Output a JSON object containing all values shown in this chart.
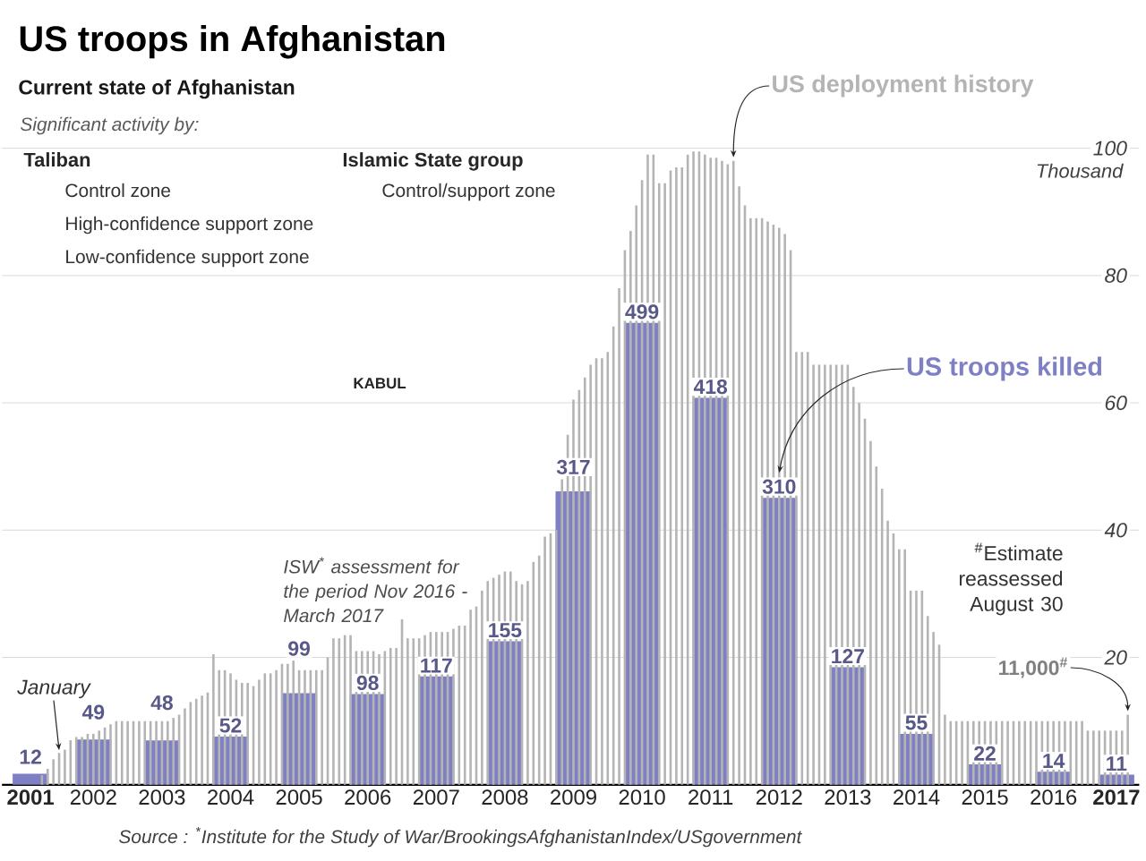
{
  "chart_data": {
    "type": "bar",
    "title": "US troops in Afghanistan",
    "subtitle": "Current state of Afghanistan",
    "ylabel": "Thousand",
    "xlim": [
      "2001-03",
      "2017-10"
    ],
    "ylim": [
      0,
      100
    ],
    "xticks": [
      {
        "value": "2001-08",
        "label": "2001"
      },
      {
        "value": "2002-07",
        "label": "2002"
      },
      {
        "value": "2003-07",
        "label": "2003"
      },
      {
        "value": "2004-07",
        "label": "2004"
      },
      {
        "value": "2005-07",
        "label": "2005"
      },
      {
        "value": "2006-07",
        "label": "2006"
      },
      {
        "value": "2007-07",
        "label": "2007"
      },
      {
        "value": "2008-07",
        "label": "2008"
      },
      {
        "value": "2009-07",
        "label": "2009"
      },
      {
        "value": "2010-07",
        "label": "2010"
      },
      {
        "value": "2011-07",
        "label": "2011"
      },
      {
        "value": "2012-07",
        "label": "2012"
      },
      {
        "value": "2013-07",
        "label": "2013"
      },
      {
        "value": "2014-07",
        "label": "2014"
      },
      {
        "value": "2015-07",
        "label": "2015"
      },
      {
        "value": "2016-07",
        "label": "2016"
      },
      {
        "value": "2017-06",
        "label": "2017"
      }
    ],
    "yticks": [
      20,
      40,
      60,
      80,
      100
    ],
    "grid": "y",
    "series": [
      {
        "name": "US deployment history",
        "color": "#b4b4b4",
        "x": [
          "2001-10",
          "2001-11",
          "2001-12",
          "2002-01",
          "2002-02",
          "2002-03",
          "2002-04",
          "2002-05",
          "2002-06",
          "2002-07",
          "2002-08",
          "2002-09",
          "2002-10",
          "2002-11",
          "2002-12",
          "2003-01",
          "2003-02",
          "2003-03",
          "2003-04",
          "2003-05",
          "2003-06",
          "2003-07",
          "2003-08",
          "2003-09",
          "2003-10",
          "2003-11",
          "2003-12",
          "2004-01",
          "2004-02",
          "2004-03",
          "2004-04",
          "2004-05",
          "2004-06",
          "2004-07",
          "2004-08",
          "2004-09",
          "2004-10",
          "2004-11",
          "2004-12",
          "2005-01",
          "2005-02",
          "2005-03",
          "2005-04",
          "2005-05",
          "2005-06",
          "2005-07",
          "2005-08",
          "2005-09",
          "2005-10",
          "2005-11",
          "2005-12",
          "2006-01",
          "2006-02",
          "2006-03",
          "2006-04",
          "2006-05",
          "2006-06",
          "2006-07",
          "2006-08",
          "2006-09",
          "2006-10",
          "2006-11",
          "2006-12",
          "2007-01",
          "2007-02",
          "2007-03",
          "2007-04",
          "2007-05",
          "2007-06",
          "2007-07",
          "2007-08",
          "2007-09",
          "2007-10",
          "2007-11",
          "2007-12",
          "2008-01",
          "2008-02",
          "2008-03",
          "2008-04",
          "2008-05",
          "2008-06",
          "2008-07",
          "2008-08",
          "2008-09",
          "2008-10",
          "2008-11",
          "2008-12",
          "2009-01",
          "2009-02",
          "2009-03",
          "2009-04",
          "2009-05",
          "2009-06",
          "2009-07",
          "2009-08",
          "2009-09",
          "2009-10",
          "2009-11",
          "2009-12",
          "2010-01",
          "2010-02",
          "2010-03",
          "2010-04",
          "2010-05",
          "2010-06",
          "2010-07",
          "2010-08",
          "2010-09",
          "2010-10",
          "2010-11",
          "2010-12",
          "2011-01",
          "2011-02",
          "2011-03",
          "2011-04",
          "2011-05",
          "2011-06",
          "2011-07",
          "2011-08",
          "2011-09",
          "2011-10",
          "2011-11",
          "2011-12",
          "2012-01",
          "2012-02",
          "2012-03",
          "2012-04",
          "2012-05",
          "2012-06",
          "2012-07",
          "2012-08",
          "2012-09",
          "2012-10",
          "2012-11",
          "2012-12",
          "2013-01",
          "2013-02",
          "2013-03",
          "2013-04",
          "2013-05",
          "2013-06",
          "2013-07",
          "2013-08",
          "2013-09",
          "2013-10",
          "2013-11",
          "2013-12",
          "2014-01",
          "2014-02",
          "2014-03",
          "2014-04",
          "2014-05",
          "2014-06",
          "2014-07",
          "2014-08",
          "2014-09",
          "2014-10",
          "2014-11",
          "2014-12",
          "2015-01",
          "2015-02",
          "2015-03",
          "2015-04",
          "2015-05",
          "2015-06",
          "2015-07",
          "2015-08",
          "2015-09",
          "2015-10",
          "2015-11",
          "2015-12",
          "2016-01",
          "2016-02",
          "2016-03",
          "2016-04",
          "2016-05",
          "2016-06",
          "2016-07",
          "2016-08",
          "2016-09",
          "2016-10",
          "2016-11",
          "2016-12",
          "2017-01",
          "2017-02",
          "2017-03",
          "2017-04",
          "2017-05",
          "2017-06",
          "2017-07",
          "2017-08"
        ],
        "values": [
          1.5,
          2.5,
          4,
          5,
          5.5,
          7,
          7.5,
          7.5,
          8,
          8,
          8.5,
          9,
          9.5,
          10,
          10,
          10,
          10,
          10,
          10,
          10,
          10,
          10,
          10,
          10.5,
          11,
          12,
          13,
          13.5,
          14,
          14.5,
          20.5,
          18,
          18,
          17.5,
          16.5,
          16,
          16,
          15.5,
          16.5,
          17.5,
          17.5,
          18,
          19,
          19,
          19.5,
          18,
          18,
          18,
          18,
          18,
          20,
          23,
          23,
          23.5,
          23.5,
          21,
          21,
          21,
          21,
          20.5,
          21,
          21.5,
          21.5,
          26,
          23,
          23,
          23,
          23.5,
          24,
          24,
          24,
          24,
          24.5,
          25,
          25,
          27.5,
          28,
          30.5,
          32,
          32.5,
          33,
          33.5,
          33.5,
          32,
          31.5,
          32,
          35,
          36,
          39,
          39.5,
          40,
          48,
          55,
          60.5,
          62,
          64,
          66,
          67,
          67,
          68,
          72,
          78,
          84,
          87,
          91,
          95,
          99,
          99,
          94.5,
          94.5,
          96.5,
          97,
          97,
          99,
          99.5,
          99.5,
          99,
          98.5,
          98.5,
          98,
          97.5,
          98,
          94,
          91,
          89,
          89,
          89,
          88.5,
          88,
          87.5,
          86.5,
          84,
          68,
          68,
          68,
          66,
          66,
          66,
          66,
          66,
          66,
          66,
          62.5,
          60,
          57.5,
          54,
          50,
          46.5,
          41.5,
          39.5,
          37,
          37,
          30.5,
          30.5,
          30.5,
          26.5,
          24,
          22,
          11,
          10,
          10,
          10,
          10,
          10,
          10,
          10,
          10,
          10,
          10,
          10,
          10,
          10,
          10,
          10,
          10,
          10,
          10,
          10,
          10,
          10,
          10,
          10,
          10,
          8.5,
          8.5,
          8.5,
          8.5,
          8.5,
          8.5,
          8.5,
          11
        ]
      },
      {
        "name": "US troops killed",
        "color": "#7f7fc4",
        "axis": "y2",
        "x": [
          "2001-08",
          "2002-07",
          "2003-07",
          "2004-07",
          "2005-07",
          "2006-07",
          "2007-07",
          "2008-07",
          "2009-07",
          "2010-07",
          "2011-07",
          "2012-07",
          "2013-07",
          "2014-07",
          "2015-07",
          "2016-07",
          "2017-06"
        ],
        "values": [
          12,
          49,
          48,
          52,
          99,
          98,
          117,
          155,
          317,
          499,
          418,
          310,
          127,
          55,
          22,
          14,
          11
        ],
        "value_labels": [
          "12",
          "49",
          "48",
          "52",
          "99",
          "98",
          "117",
          "155",
          "317",
          "499",
          "418",
          "310",
          "127",
          "55",
          "22",
          "14",
          "11"
        ]
      }
    ],
    "annotations": [
      "Significant activity by:",
      "Taliban",
      "Control zone",
      "High-confidence support zone",
      "Low-confidence support zone",
      "Islamic State group",
      "Control/support zone",
      "KABUL",
      "ISW$^{*}$ assessment for the period Nov 2016 - March 2017",
      {
        "text": "January",
        "x": "2002-01",
        "y": 5
      },
      {
        "text": "11,000$^{#}$",
        "x": "2017-08",
        "y": 11
      },
      "$^{#}$Estimate reassessed August 30",
      "Source : $^{*}$Institute for the Study of War/BrookingsAfghanistanIndex/USgovernment"
    ]
  }
}
